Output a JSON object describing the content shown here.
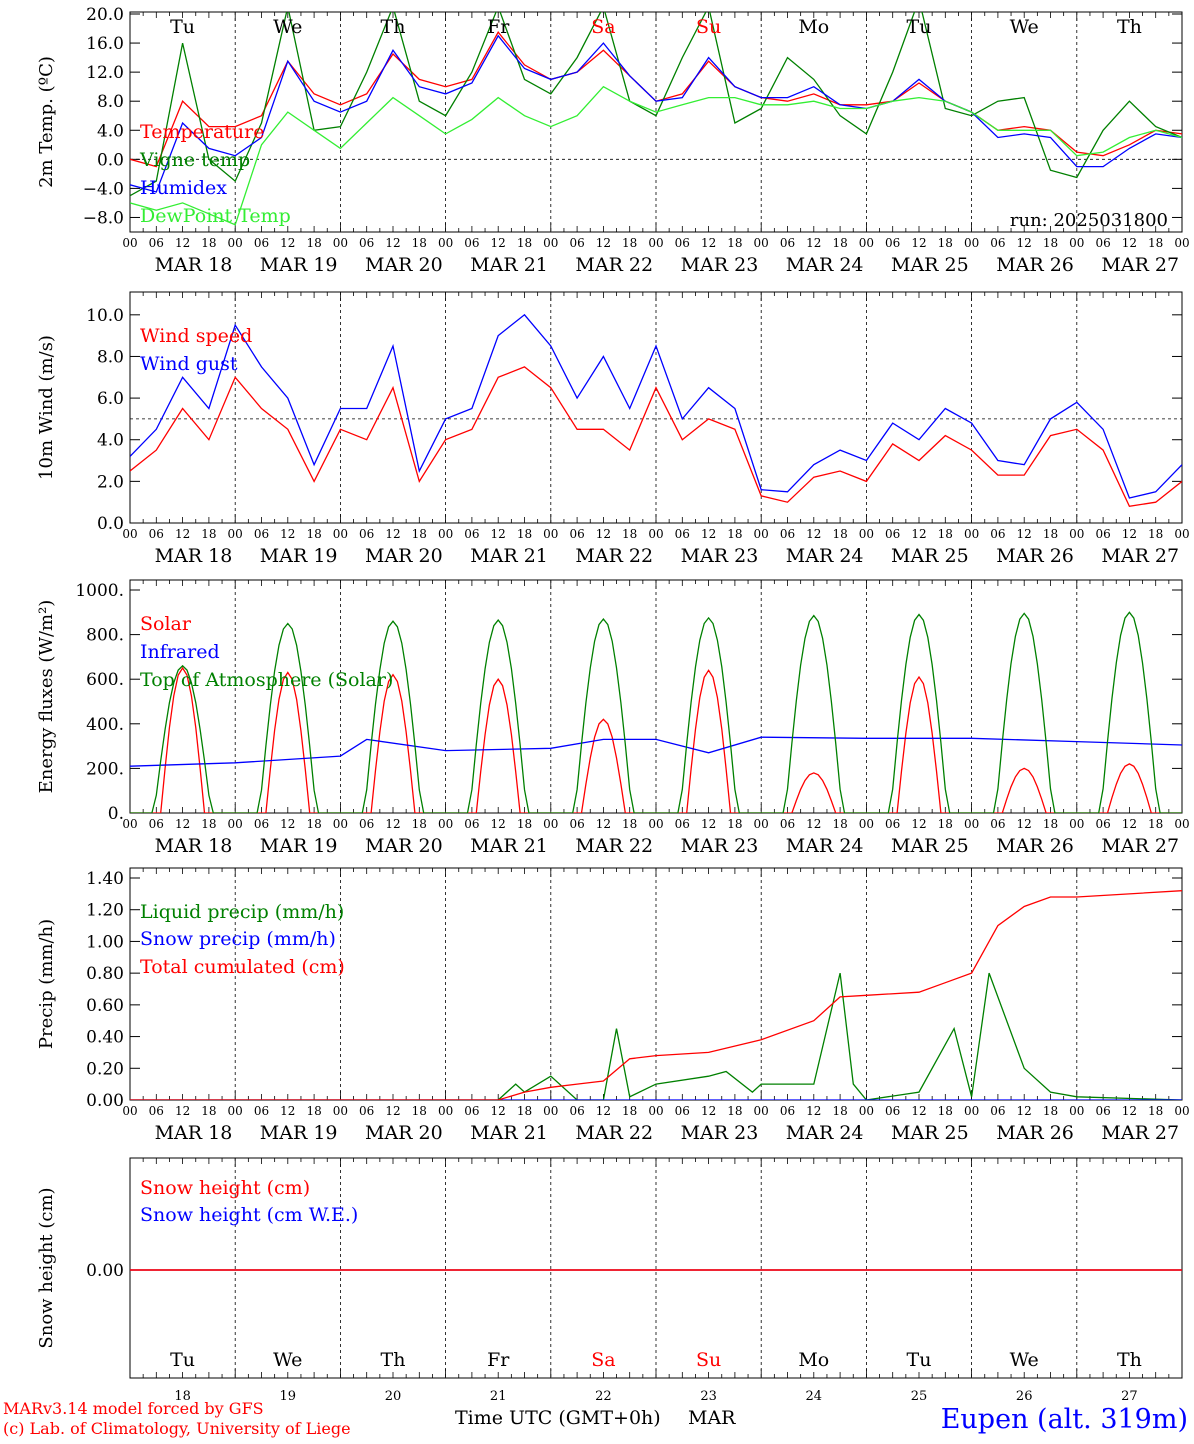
{
  "days": {
    "short": [
      "Tu",
      "We",
      "Th",
      "Fr",
      "Sa",
      "Su",
      "Mo",
      "Tu",
      "We",
      "Th"
    ],
    "dates": [
      "MAR 18",
      "MAR 19",
      "MAR 20",
      "MAR 21",
      "MAR 22",
      "MAR 23",
      "MAR 24",
      "MAR 25",
      "MAR 26",
      "MAR 27"
    ],
    "nums": [
      "18",
      "19",
      "20",
      "21",
      "22",
      "23",
      "24",
      "25",
      "26",
      "27"
    ],
    "weekend_flags": [
      false,
      false,
      false,
      false,
      true,
      true,
      false,
      false,
      false,
      false
    ],
    "hour_ticks": [
      "00",
      "06",
      "12",
      "18"
    ]
  },
  "colors": {
    "red": "#ff0000",
    "green": "#008000",
    "blue": "#0000ff",
    "light_green": "#33ee33",
    "weekend": "#ff0000",
    "axis": "#000000"
  },
  "footer": {
    "model": "MARv3.14 model forced by GFS",
    "lab": "(c) Lab. of Climatology, University of Liege",
    "time_label": "Time UTC (GMT+0h)",
    "month": "MAR",
    "station": "Eupen (alt. 319m)"
  },
  "chart_data": [
    {
      "id": "temp",
      "type": "line",
      "ylabel": "2m Temp. (ºC)",
      "ylim": [
        -10,
        20
      ],
      "yticks": [
        "20.0",
        "16.0",
        "12.0",
        "8.0",
        "4.0",
        "0.0",
        "−4.0",
        "−8.0"
      ],
      "ytick_values": [
        20,
        16,
        12,
        8,
        4,
        0,
        -4,
        -8
      ],
      "dashed_ref": 0,
      "run_label": "run: 2025031800",
      "x_unit": "hours since MAR 18 00 UTC",
      "series": [
        {
          "name": "Temperature",
          "color": "red",
          "x": [
            0,
            6,
            12,
            18,
            24,
            30,
            36,
            42,
            48,
            54,
            60,
            66,
            72,
            78,
            84,
            90,
            96,
            102,
            108,
            114,
            120,
            126,
            132,
            138,
            144,
            150,
            156,
            162,
            168,
            174,
            180,
            186,
            192,
            198,
            204,
            210,
            216,
            222,
            228,
            234,
            240
          ],
          "values": [
            0.0,
            -1.0,
            8.0,
            4.5,
            4.5,
            6.0,
            13.5,
            9.0,
            7.5,
            9.0,
            14.5,
            11.0,
            10.0,
            11.0,
            17.5,
            13.0,
            11.0,
            12.0,
            15.0,
            11.5,
            8.0,
            9.0,
            13.5,
            10.0,
            8.5,
            8.0,
            9.0,
            7.5,
            7.5,
            8.0,
            10.5,
            8.0,
            6.5,
            4.0,
            4.5,
            4.0,
            1.0,
            0.5,
            2.0,
            4.0,
            3.5
          ]
        },
        {
          "name": "Vigne temp",
          "color": "green",
          "x": [
            0,
            6,
            12,
            18,
            24,
            30,
            36,
            42,
            48,
            54,
            60,
            66,
            72,
            78,
            84,
            90,
            96,
            102,
            108,
            114,
            120,
            126,
            132,
            138,
            144,
            150,
            156,
            162,
            168,
            174,
            180,
            186,
            192,
            198,
            204,
            210,
            216,
            222,
            228,
            234,
            240
          ],
          "values": [
            -5.0,
            -3.0,
            16.0,
            0.0,
            -3.0,
            5.0,
            21.0,
            4.0,
            4.5,
            12.0,
            21.0,
            8.0,
            6.0,
            12.0,
            21.0,
            11.0,
            9.0,
            14.0,
            21.0,
            8.0,
            6.0,
            14.0,
            21.0,
            5.0,
            7.0,
            14.0,
            11.0,
            6.0,
            3.5,
            12.0,
            22.0,
            7.0,
            6.0,
            8.0,
            8.5,
            -1.5,
            -2.5,
            4.0,
            8.0,
            4.5,
            3.0
          ]
        },
        {
          "name": "Humidex",
          "color": "blue",
          "x": [
            0,
            6,
            12,
            18,
            24,
            30,
            36,
            42,
            48,
            54,
            60,
            66,
            72,
            78,
            84,
            90,
            96,
            102,
            108,
            114,
            120,
            126,
            132,
            138,
            144,
            150,
            156,
            162,
            168,
            174,
            180,
            186,
            192,
            198,
            204,
            210,
            216,
            222,
            228,
            234,
            240
          ],
          "values": [
            -3.5,
            -4.5,
            5.0,
            1.5,
            0.5,
            3.0,
            13.5,
            8.0,
            6.5,
            8.0,
            15.0,
            10.0,
            9.0,
            10.5,
            17.0,
            12.5,
            11.0,
            12.0,
            16.0,
            11.5,
            8.0,
            8.5,
            14.0,
            10.0,
            8.5,
            8.5,
            10.0,
            7.5,
            7.0,
            8.0,
            11.0,
            8.0,
            6.5,
            3.0,
            3.5,
            3.0,
            -1.0,
            -1.0,
            1.5,
            3.5,
            3.0
          ]
        },
        {
          "name": "DewPoint Temp",
          "color": "light_green",
          "x": [
            0,
            6,
            12,
            18,
            24,
            30,
            36,
            42,
            48,
            54,
            60,
            66,
            72,
            78,
            84,
            90,
            96,
            102,
            108,
            114,
            120,
            126,
            132,
            138,
            144,
            150,
            156,
            162,
            168,
            174,
            180,
            186,
            192,
            198,
            204,
            210,
            216,
            222,
            228,
            234,
            240
          ],
          "values": [
            -6.0,
            -7.0,
            -6.0,
            -7.5,
            -9.0,
            2.0,
            6.5,
            4.0,
            1.5,
            5.0,
            8.5,
            6.0,
            3.5,
            5.5,
            8.5,
            6.0,
            4.5,
            6.0,
            10.0,
            8.0,
            6.5,
            7.5,
            8.5,
            8.5,
            7.5,
            7.5,
            8.0,
            7.0,
            7.0,
            8.0,
            8.5,
            8.0,
            6.5,
            4.0,
            4.0,
            4.0,
            0.5,
            1.0,
            3.0,
            4.0,
            3.0
          ]
        }
      ]
    },
    {
      "id": "wind",
      "type": "line",
      "ylabel": "10m Wind (m/s)",
      "ylim": [
        0,
        11
      ],
      "yticks": [
        "10.0",
        "8.0",
        "6.0",
        "4.0",
        "2.0",
        "0.0"
      ],
      "ytick_values": [
        10,
        8,
        6,
        4,
        2,
        0
      ],
      "dashed_ref": 5,
      "series": [
        {
          "name": "Wind speed",
          "color": "red",
          "x": [
            0,
            6,
            12,
            18,
            24,
            30,
            36,
            42,
            48,
            54,
            60,
            66,
            72,
            78,
            84,
            90,
            96,
            102,
            108,
            114,
            120,
            126,
            132,
            138,
            144,
            150,
            156,
            162,
            168,
            174,
            180,
            186,
            192,
            198,
            204,
            210,
            216,
            222,
            228,
            234,
            240
          ],
          "values": [
            2.5,
            3.5,
            5.5,
            4.0,
            7.0,
            5.5,
            4.5,
            2.0,
            4.5,
            4.0,
            6.5,
            2.0,
            4.0,
            4.5,
            7.0,
            7.5,
            6.5,
            4.5,
            4.5,
            3.5,
            6.5,
            4.0,
            5.0,
            4.5,
            1.3,
            1.0,
            2.2,
            2.5,
            2.0,
            3.8,
            3.0,
            4.2,
            3.5,
            2.3,
            2.3,
            4.2,
            4.5,
            3.5,
            0.8,
            1.0,
            2.0
          ]
        },
        {
          "name": "Wind gust",
          "color": "blue",
          "x": [
            0,
            6,
            12,
            18,
            24,
            30,
            36,
            42,
            48,
            54,
            60,
            66,
            72,
            78,
            84,
            90,
            96,
            102,
            108,
            114,
            120,
            126,
            132,
            138,
            144,
            150,
            156,
            162,
            168,
            174,
            180,
            186,
            192,
            198,
            204,
            210,
            216,
            222,
            228,
            234,
            240
          ],
          "values": [
            3.2,
            4.5,
            7.0,
            5.5,
            9.5,
            7.5,
            6.0,
            2.8,
            5.5,
            5.5,
            8.5,
            2.5,
            5.0,
            5.5,
            9.0,
            10.0,
            8.5,
            6.0,
            8.0,
            5.5,
            8.5,
            5.0,
            6.5,
            5.5,
            1.6,
            1.5,
            2.8,
            3.5,
            3.0,
            4.8,
            4.0,
            5.5,
            4.8,
            3.0,
            2.8,
            5.0,
            5.8,
            4.5,
            1.2,
            1.5,
            2.8
          ]
        }
      ]
    },
    {
      "id": "energy",
      "type": "line",
      "ylabel": "Energy fluxes (W/m²)",
      "ylim": [
        0,
        1000
      ],
      "yticks": [
        "1000.",
        "800.",
        "600.",
        "400.",
        "200.",
        "0."
      ],
      "ytick_values": [
        1000,
        800,
        600,
        400,
        200,
        0
      ],
      "series": [
        {
          "name": "Solar",
          "color": "red",
          "peaks": [
            650,
            630,
            620,
            600,
            420,
            640,
            180,
            610,
            200,
            220
          ]
        },
        {
          "name": "Infrared",
          "color": "blue",
          "x": [
            0,
            24,
            48,
            54,
            72,
            96,
            108,
            120,
            132,
            144,
            168,
            192,
            216,
            240
          ],
          "values": [
            210,
            225,
            255,
            330,
            280,
            290,
            330,
            330,
            270,
            340,
            335,
            335,
            320,
            305
          ]
        },
        {
          "name": "Top of Atmosphere (Solar)",
          "color": "green",
          "peaks": [
            660,
            850,
            860,
            865,
            870,
            875,
            885,
            890,
            895,
            900
          ]
        }
      ]
    },
    {
      "id": "precip",
      "type": "line",
      "ylabel": "Precip (mm/h)",
      "ylim": [
        0,
        1.4
      ],
      "yticks": [
        "1.40",
        "1.20",
        "1.00",
        "0.80",
        "0.60",
        "0.40",
        "0.20",
        "0.00"
      ],
      "ytick_values": [
        1.4,
        1.2,
        1.0,
        0.8,
        0.6,
        0.4,
        0.2,
        0.0
      ],
      "series": [
        {
          "name": "Liquid precip (mm/h)",
          "color": "green",
          "x": [
            0,
            84,
            88,
            90,
            96,
            102,
            108,
            111,
            114,
            120,
            132,
            136,
            142,
            144,
            156,
            162,
            165,
            168,
            180,
            188,
            192,
            196,
            204,
            210,
            216,
            240
          ],
          "values": [
            0,
            0,
            0.1,
            0.05,
            0.15,
            0,
            0,
            0.45,
            0.02,
            0.1,
            0.15,
            0.18,
            0.05,
            0.1,
            0.1,
            0.8,
            0.1,
            0,
            0.05,
            0.45,
            0.02,
            0.8,
            0.2,
            0.05,
            0.02,
            0
          ]
        },
        {
          "name": "Snow precip (mm/h)",
          "color": "blue",
          "x": [
            0,
            240
          ],
          "values": [
            0,
            0
          ]
        },
        {
          "name": "Total cumulated (cm)",
          "color": "red",
          "x": [
            0,
            84,
            90,
            96,
            102,
            108,
            114,
            120,
            132,
            144,
            156,
            162,
            168,
            180,
            186,
            192,
            198,
            204,
            210,
            216,
            240
          ],
          "values": [
            0,
            0,
            0.05,
            0.08,
            0.1,
            0.12,
            0.26,
            0.28,
            0.3,
            0.38,
            0.5,
            0.65,
            0.66,
            0.68,
            0.74,
            0.8,
            1.1,
            1.22,
            1.28,
            1.28,
            1.32
          ]
        }
      ]
    },
    {
      "id": "snow",
      "type": "line",
      "ylabel": "Snow height (cm)",
      "yticks": [
        "0.00"
      ],
      "ytick_values": [
        0
      ],
      "series": [
        {
          "name": "Snow height (cm)",
          "color": "red",
          "x": [
            0,
            240
          ],
          "values": [
            0,
            0
          ]
        },
        {
          "name": "Snow height (cm W.E.)",
          "color": "blue",
          "x": [
            0,
            240
          ],
          "values": [
            0,
            0
          ]
        }
      ]
    }
  ]
}
